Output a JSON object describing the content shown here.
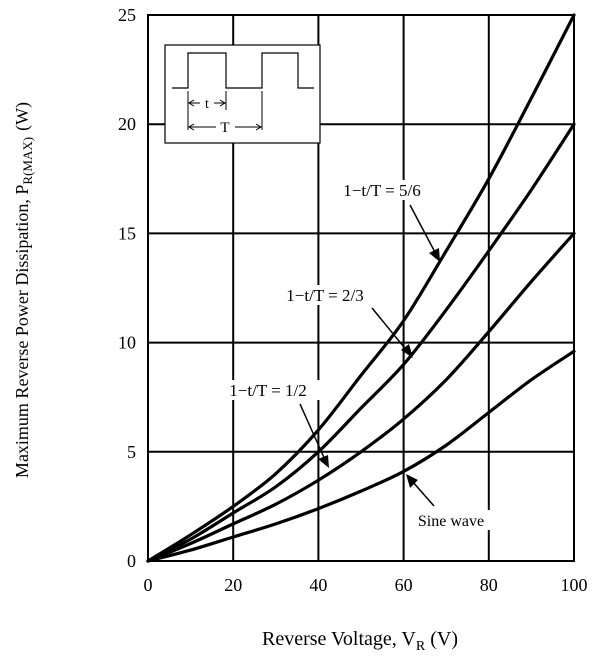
{
  "chart_data": {
    "type": "line",
    "xlabel": "Reverse Voltage, V",
    "xlabel_sub": "R",
    "xlabel_unit": "(V)",
    "ylabel": "Maximum Reverse Power Dissipation, P",
    "ylabel_sub": "R(MAX)",
    "ylabel_unit": "(W)",
    "xlim": [
      0,
      100
    ],
    "ylim": [
      0,
      25
    ],
    "xticks": [
      0,
      20,
      40,
      60,
      80,
      100
    ],
    "yticks": [
      0,
      5,
      10,
      15,
      20,
      25
    ],
    "grid": true,
    "series": [
      {
        "name": "1−t/T = 5/6",
        "x": [
          0,
          10,
          20,
          30,
          40,
          50,
          60,
          70,
          80,
          90,
          100
        ],
        "y": [
          0,
          1.2,
          2.5,
          4.0,
          6.0,
          8.5,
          11.0,
          14.2,
          17.5,
          21.2,
          25.0
        ]
      },
      {
        "name": "1−t/T = 2/3",
        "x": [
          0,
          10,
          20,
          30,
          40,
          50,
          60,
          70,
          80,
          90,
          100
        ],
        "y": [
          0,
          1.0,
          2.2,
          3.4,
          5.0,
          7.0,
          9.0,
          11.5,
          14.2,
          17.0,
          20.0
        ]
      },
      {
        "name": "1−t/T = 1/2",
        "x": [
          0,
          10,
          20,
          30,
          40,
          50,
          60,
          70,
          80,
          90,
          100
        ],
        "y": [
          0,
          0.8,
          1.7,
          2.6,
          3.7,
          5.0,
          6.5,
          8.3,
          10.5,
          12.8,
          15.0
        ]
      },
      {
        "name": "Sine wave",
        "x": [
          0,
          10,
          20,
          30,
          40,
          50,
          60,
          70,
          80,
          90,
          100
        ],
        "y": [
          0,
          0.5,
          1.1,
          1.7,
          2.4,
          3.2,
          4.1,
          5.3,
          6.8,
          8.3,
          9.6
        ]
      }
    ],
    "annotations": [
      {
        "text": "1−t/T = 5/6",
        "series": 0
      },
      {
        "text": "1−t/T = 2/3",
        "series": 1
      },
      {
        "text": "1−t/T = 1/2",
        "series": 2
      },
      {
        "text": "Sine wave",
        "series": 3
      }
    ],
    "inset": {
      "t_label": "t",
      "T_label": "T"
    }
  }
}
